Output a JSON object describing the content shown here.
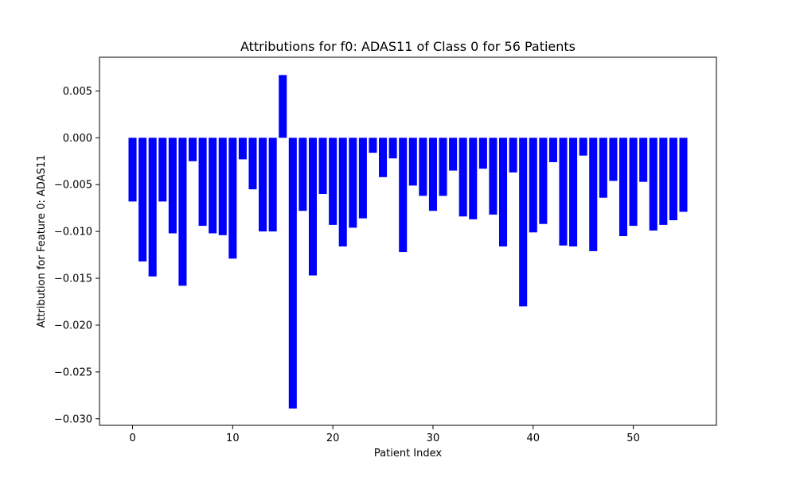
{
  "colors": {
    "bar": "#0000ff",
    "axis": "#000000",
    "background": "#ffffff"
  },
  "chart_data": {
    "type": "bar",
    "title": "Attributions for f0: ADAS11 of Class 0 for 56 Patients",
    "xlabel": "Patient Index",
    "ylabel": "Attribution for Feature 0: ADAS11",
    "xlim": [
      -3.3,
      58.3
    ],
    "ylim": [
      -0.0307,
      0.0086
    ],
    "xticks": [
      0,
      10,
      20,
      30,
      40,
      50
    ],
    "xtick_labels": [
      "0",
      "10",
      "20",
      "30",
      "40",
      "50"
    ],
    "yticks": [
      0.005,
      0.0,
      -0.005,
      -0.01,
      -0.015,
      -0.02,
      -0.025,
      -0.03
    ],
    "ytick_labels": [
      "0.005",
      "0.000",
      "−0.005",
      "−0.010",
      "−0.015",
      "−0.020",
      "−0.025",
      "−0.030"
    ],
    "grid": false,
    "bar_width": 0.8,
    "categories": [
      0,
      1,
      2,
      3,
      4,
      5,
      6,
      7,
      8,
      9,
      10,
      11,
      12,
      13,
      14,
      15,
      16,
      17,
      18,
      19,
      20,
      21,
      22,
      23,
      24,
      25,
      26,
      27,
      28,
      29,
      30,
      31,
      32,
      33,
      34,
      35,
      36,
      37,
      38,
      39,
      40,
      41,
      42,
      43,
      44,
      45,
      46,
      47,
      48,
      49,
      50,
      51,
      52,
      53,
      54,
      55
    ],
    "values": [
      -0.0068,
      -0.0132,
      -0.0148,
      -0.0068,
      -0.0102,
      -0.0158,
      -0.0025,
      -0.0094,
      -0.0102,
      -0.0104,
      -0.0129,
      -0.0023,
      -0.0055,
      -0.01,
      -0.01,
      0.0067,
      -0.0289,
      -0.0078,
      -0.0147,
      -0.006,
      -0.0093,
      -0.0116,
      -0.0096,
      -0.0086,
      -0.0016,
      -0.0042,
      -0.0022,
      -0.0122,
      -0.0051,
      -0.0062,
      -0.0078,
      -0.0062,
      -0.0035,
      -0.0084,
      -0.0087,
      -0.0033,
      -0.0082,
      -0.0116,
      -0.0037,
      -0.018,
      -0.0101,
      -0.0092,
      -0.0026,
      -0.0115,
      -0.0116,
      -0.0019,
      -0.0121,
      -0.0064,
      -0.0046,
      -0.0105,
      -0.0094,
      -0.0047,
      -0.0099,
      -0.0093,
      -0.0088,
      -0.0079
    ]
  }
}
